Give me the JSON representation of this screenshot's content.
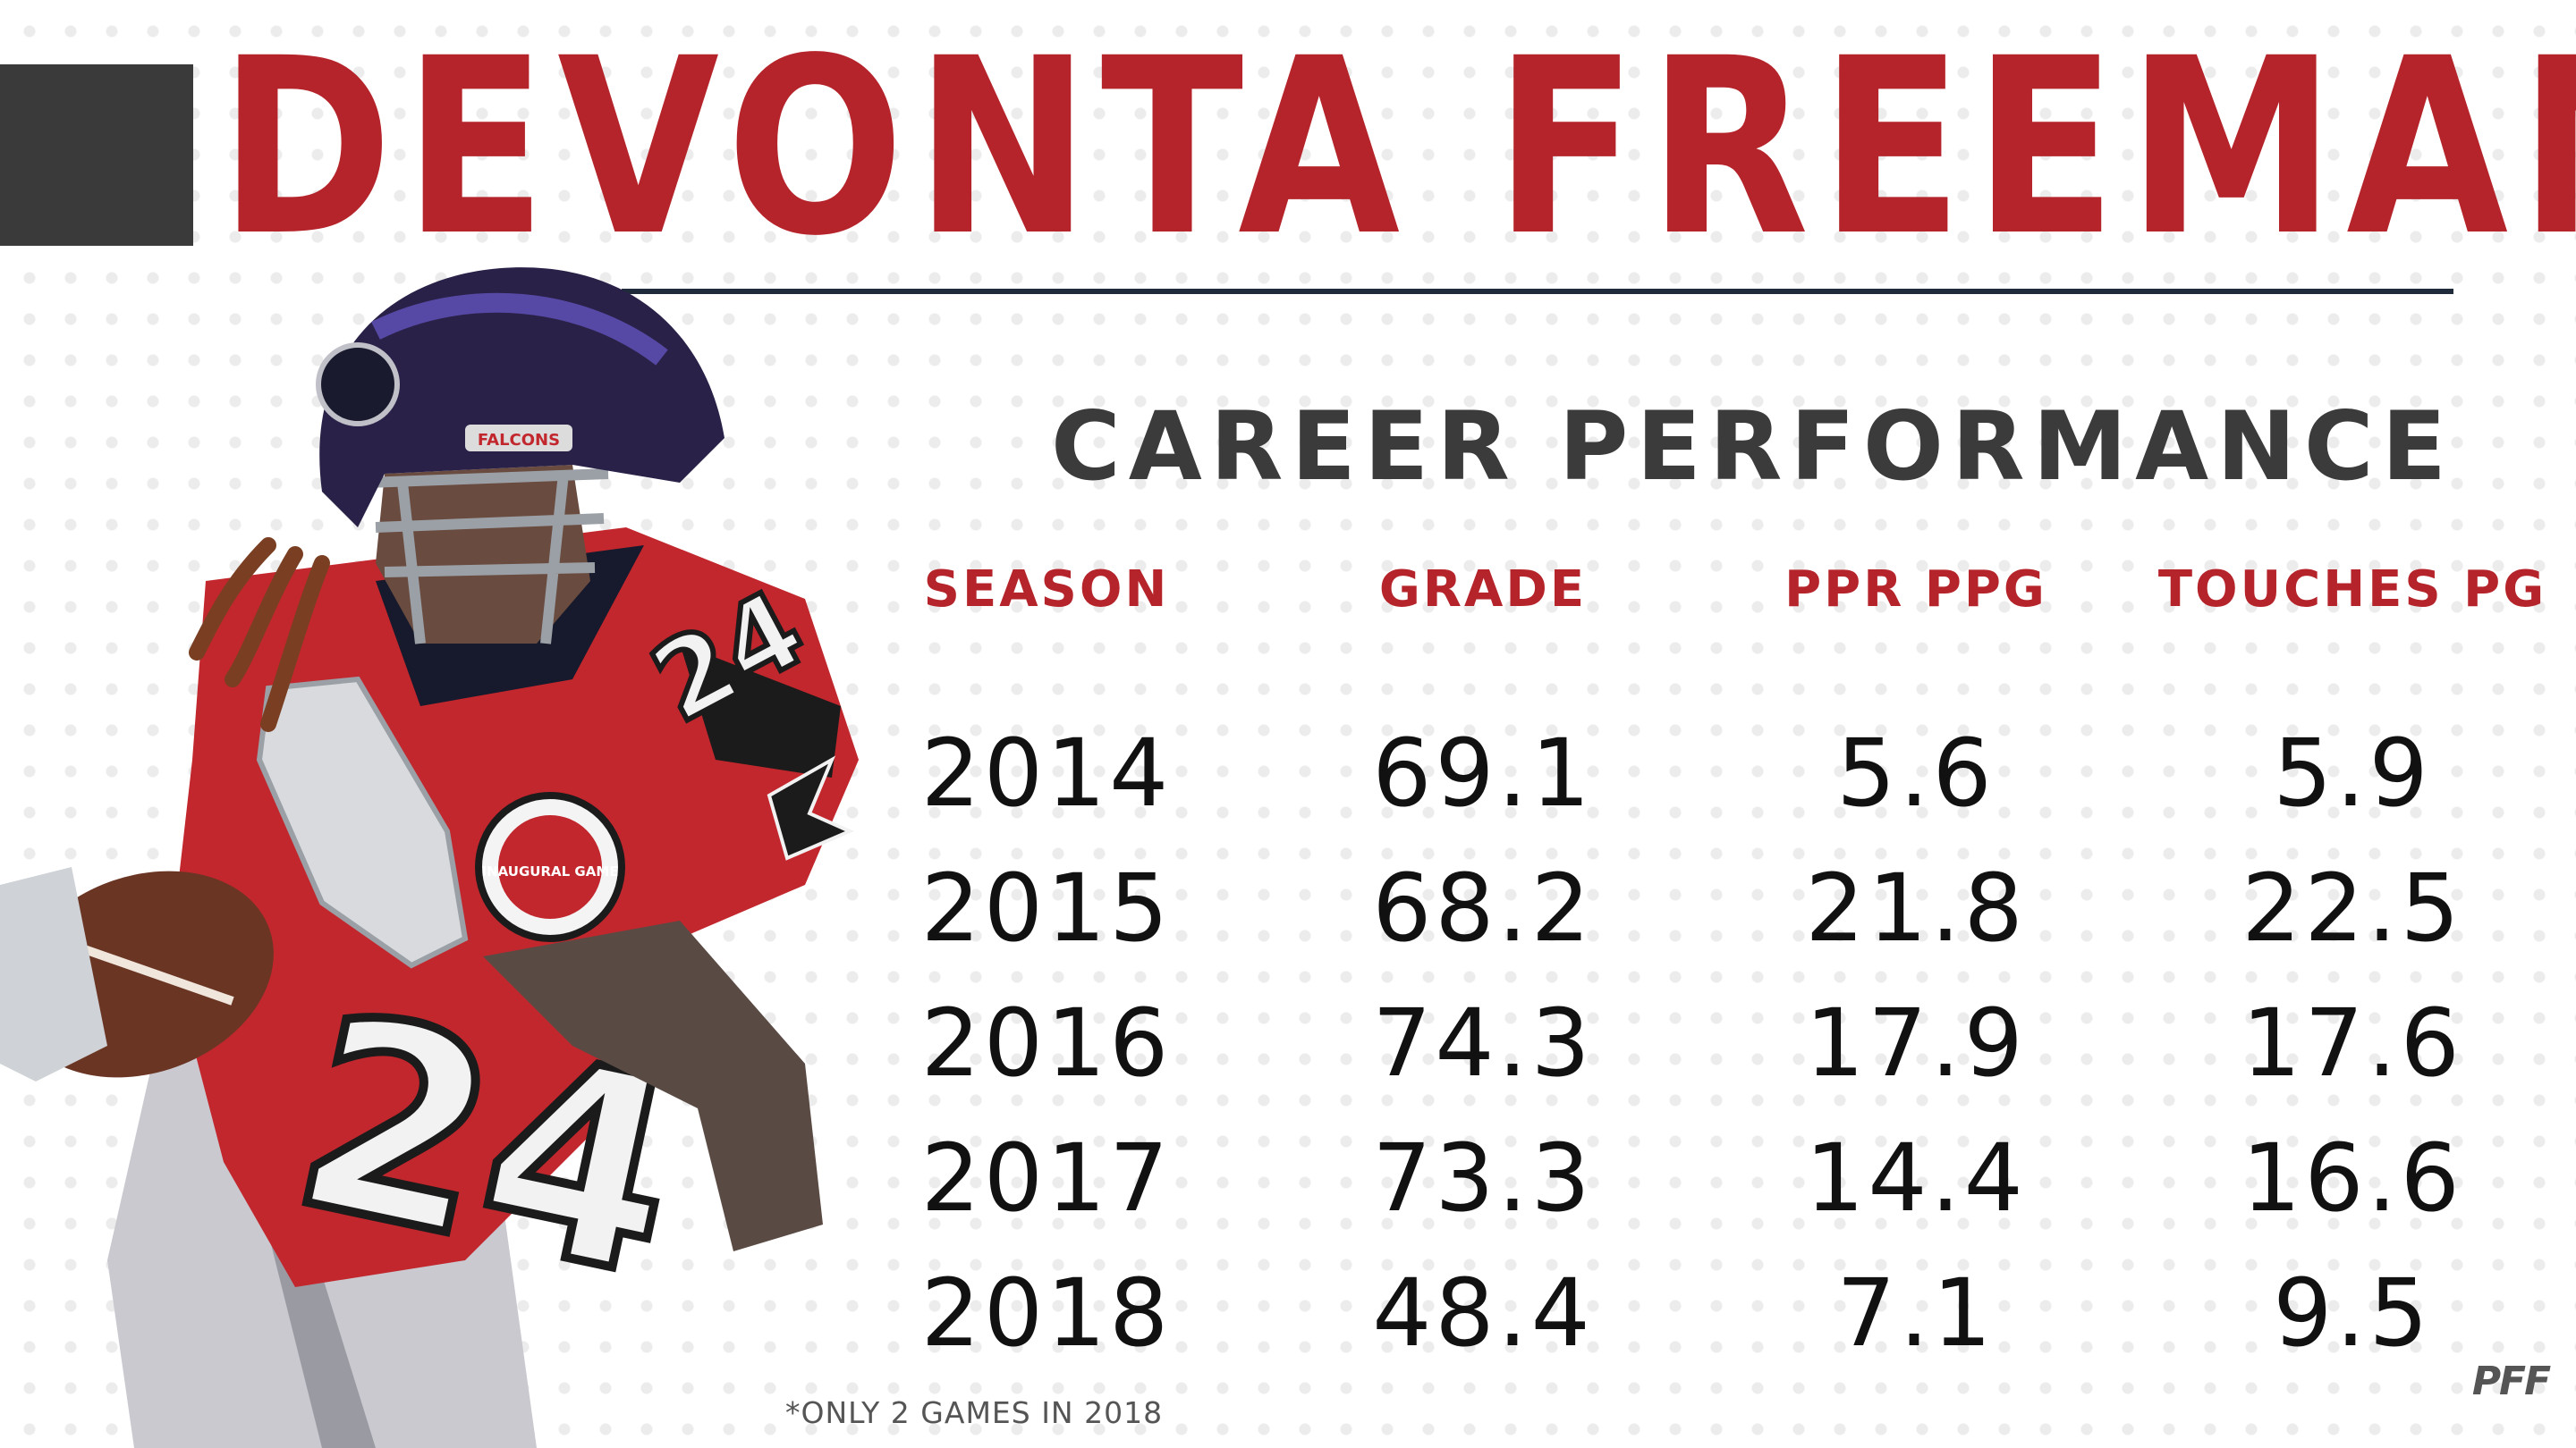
{
  "header": {
    "player_name": "DEVONTA FREEMAN"
  },
  "section": {
    "title": "CAREER PERFORMANCE"
  },
  "table": {
    "columns": [
      "SEASON",
      "GRADE",
      "PPR PPG",
      "TOUCHES PG"
    ],
    "rows": [
      [
        "2014",
        "69.1",
        "5.6",
        "5.9"
      ],
      [
        "2015",
        "68.2",
        "21.8",
        "22.5"
      ],
      [
        "2016",
        "74.3",
        "17.9",
        "17.6"
      ],
      [
        "2017",
        "73.3",
        "14.4",
        "16.6"
      ],
      [
        "2018",
        "48.4",
        "7.1",
        "9.5"
      ]
    ]
  },
  "footnote": "*ONLY 2 GAMES IN 2018",
  "logo": {
    "text": "PFF"
  },
  "photo": {
    "helmet_text": "FALCONS",
    "jersey_number": "24",
    "patch_text": "INAUGURAL GAME"
  },
  "colors": {
    "accent_red": "#b5242a",
    "dark_block": "#3a3a3a",
    "title_gray": "#3b3b3b",
    "rule_navy": "#1f2b3a",
    "value_black": "#111111"
  },
  "icons": [
    "pff-logo",
    "falcons-logo-icon"
  ]
}
